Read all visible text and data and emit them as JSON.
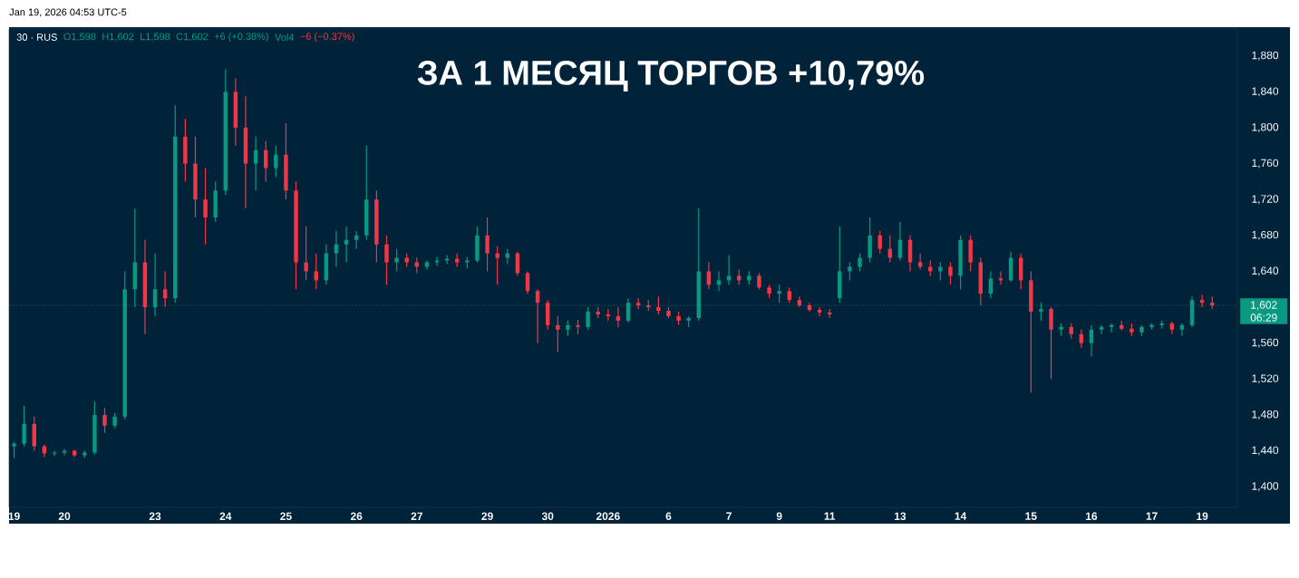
{
  "chart_data": {
    "type": "candlestick",
    "title": "ЗА 1 МЕСЯЦ ТОРГОВ +10,79%",
    "annotations": [
      "30 · RUS",
      "O1,598",
      "H1,602",
      "L1,598",
      "C1,602",
      "+6 (+0.38%)",
      "Vol4",
      "−6 (−0.37%)",
      "Jan 19, 2026 04:53 UTC-5",
      "06:29"
    ],
    "categories": [
      "19",
      null,
      null,
      null,
      null,
      "20",
      null,
      null,
      null,
      null,
      null,
      null,
      null,
      null,
      "23",
      null,
      null,
      null,
      null,
      null,
      null,
      "24",
      null,
      null,
      null,
      null,
      null,
      "25",
      null,
      null,
      null,
      null,
      null,
      null,
      "26",
      null,
      null,
      null,
      null,
      null,
      "27",
      null,
      null,
      null,
      null,
      null,
      null,
      "29",
      null,
      null,
      null,
      null,
      null,
      "30",
      null,
      null,
      null,
      null,
      null,
      "2026",
      null,
      null,
      null,
      null,
      null,
      "6",
      null,
      null,
      null,
      null,
      null,
      "7",
      null,
      null,
      null,
      null,
      "9",
      null,
      null,
      null,
      null,
      "11",
      null,
      null,
      null,
      null,
      null,
      null,
      "13",
      null,
      null,
      null,
      null,
      null,
      "14",
      null,
      null,
      null,
      null,
      null,
      null,
      "15",
      null,
      null,
      null,
      null,
      null,
      "16",
      null,
      null,
      null,
      null,
      null,
      "17",
      null,
      null,
      null,
      null,
      "19",
      null
    ],
    "ohlc": [
      [
        1445,
        1450,
        1432,
        1448
      ],
      [
        1448,
        1490,
        1445,
        1470
      ],
      [
        1470,
        1478,
        1440,
        1445
      ],
      [
        1445,
        1447,
        1433,
        1437
      ],
      [
        1437,
        1440,
        1434,
        1438
      ],
      [
        1438,
        1442,
        1435,
        1440
      ],
      [
        1440,
        1441,
        1433,
        1435
      ],
      [
        1435,
        1440,
        1432,
        1438
      ],
      [
        1438,
        1495,
        1436,
        1480
      ],
      [
        1480,
        1488,
        1460,
        1468
      ],
      [
        1468,
        1482,
        1465,
        1478
      ],
      [
        1478,
        1640,
        1475,
        1620
      ],
      [
        1620,
        1710,
        1600,
        1650
      ],
      [
        1650,
        1675,
        1570,
        1600
      ],
      [
        1600,
        1660,
        1590,
        1620
      ],
      [
        1620,
        1640,
        1600,
        1610
      ],
      [
        1610,
        1825,
        1605,
        1790
      ],
      [
        1790,
        1810,
        1740,
        1760
      ],
      [
        1760,
        1790,
        1700,
        1720
      ],
      [
        1720,
        1755,
        1670,
        1700
      ],
      [
        1700,
        1740,
        1695,
        1730
      ],
      [
        1730,
        1865,
        1725,
        1840
      ],
      [
        1840,
        1855,
        1780,
        1800
      ],
      [
        1800,
        1835,
        1710,
        1760
      ],
      [
        1760,
        1790,
        1730,
        1775
      ],
      [
        1775,
        1785,
        1740,
        1755
      ],
      [
        1755,
        1780,
        1745,
        1770
      ],
      [
        1770,
        1805,
        1720,
        1730
      ],
      [
        1730,
        1740,
        1620,
        1650
      ],
      [
        1650,
        1690,
        1630,
        1640
      ],
      [
        1640,
        1660,
        1620,
        1630
      ],
      [
        1630,
        1670,
        1625,
        1660
      ],
      [
        1660,
        1685,
        1645,
        1670
      ],
      [
        1670,
        1690,
        1650,
        1675
      ],
      [
        1675,
        1685,
        1665,
        1680
      ],
      [
        1680,
        1780,
        1675,
        1720
      ],
      [
        1720,
        1730,
        1650,
        1670
      ],
      [
        1670,
        1680,
        1625,
        1650
      ],
      [
        1650,
        1665,
        1640,
        1655
      ],
      [
        1655,
        1660,
        1645,
        1650
      ],
      [
        1650,
        1655,
        1638,
        1645
      ],
      [
        1645,
        1652,
        1642,
        1650
      ],
      [
        1650,
        1656,
        1646,
        1652
      ],
      [
        1652,
        1658,
        1648,
        1654
      ],
      [
        1654,
        1660,
        1645,
        1650
      ],
      [
        1650,
        1656,
        1643,
        1652
      ],
      [
        1652,
        1690,
        1650,
        1680
      ],
      [
        1680,
        1700,
        1640,
        1660
      ],
      [
        1660,
        1668,
        1625,
        1655
      ],
      [
        1655,
        1665,
        1648,
        1660
      ],
      [
        1660,
        1662,
        1635,
        1638
      ],
      [
        1638,
        1640,
        1615,
        1618
      ],
      [
        1618,
        1620,
        1560,
        1605
      ],
      [
        1605,
        1608,
        1575,
        1580
      ],
      [
        1580,
        1590,
        1550,
        1575
      ],
      [
        1575,
        1585,
        1568,
        1580
      ],
      [
        1580,
        1586,
        1570,
        1578
      ],
      [
        1578,
        1600,
        1575,
        1595
      ],
      [
        1595,
        1600,
        1588,
        1592
      ],
      [
        1592,
        1598,
        1585,
        1590
      ],
      [
        1590,
        1600,
        1578,
        1585
      ],
      [
        1585,
        1610,
        1583,
        1605
      ],
      [
        1605,
        1610,
        1598,
        1602
      ],
      [
        1602,
        1608,
        1596,
        1600
      ],
      [
        1600,
        1612,
        1592,
        1596
      ],
      [
        1596,
        1600,
        1588,
        1590
      ],
      [
        1590,
        1595,
        1580,
        1585
      ],
      [
        1585,
        1590,
        1578,
        1588
      ],
      [
        1588,
        1710,
        1585,
        1640
      ],
      [
        1640,
        1650,
        1620,
        1625
      ],
      [
        1625,
        1640,
        1618,
        1630
      ],
      [
        1630,
        1658,
        1625,
        1635
      ],
      [
        1635,
        1642,
        1625,
        1630
      ],
      [
        1630,
        1640,
        1625,
        1635
      ],
      [
        1635,
        1638,
        1620,
        1622
      ],
      [
        1622,
        1625,
        1610,
        1615
      ],
      [
        1615,
        1625,
        1605,
        1618
      ],
      [
        1618,
        1622,
        1605,
        1608
      ],
      [
        1608,
        1612,
        1600,
        1602
      ],
      [
        1602,
        1605,
        1595,
        1597
      ],
      [
        1597,
        1600,
        1590,
        1594
      ],
      [
        1594,
        1598,
        1588,
        1592
      ],
      [
        1610,
        1690,
        1605,
        1640
      ],
      [
        1640,
        1650,
        1630,
        1645
      ],
      [
        1645,
        1660,
        1640,
        1655
      ],
      [
        1655,
        1700,
        1650,
        1680
      ],
      [
        1680,
        1685,
        1660,
        1665
      ],
      [
        1665,
        1680,
        1650,
        1655
      ],
      [
        1655,
        1695,
        1652,
        1675
      ],
      [
        1675,
        1680,
        1640,
        1650
      ],
      [
        1650,
        1660,
        1642,
        1645
      ],
      [
        1645,
        1652,
        1635,
        1640
      ],
      [
        1640,
        1650,
        1630,
        1645
      ],
      [
        1645,
        1650,
        1625,
        1635
      ],
      [
        1635,
        1680,
        1620,
        1675
      ],
      [
        1675,
        1680,
        1640,
        1650
      ],
      [
        1650,
        1655,
        1602,
        1615
      ],
      [
        1615,
        1640,
        1610,
        1632
      ],
      [
        1632,
        1640,
        1625,
        1630
      ],
      [
        1630,
        1662,
        1628,
        1655
      ],
      [
        1655,
        1660,
        1620,
        1630
      ],
      [
        1630,
        1640,
        1505,
        1595
      ],
      [
        1595,
        1605,
        1585,
        1598
      ],
      [
        1598,
        1600,
        1520,
        1575
      ],
      [
        1575,
        1582,
        1568,
        1578
      ],
      [
        1578,
        1582,
        1565,
        1570
      ],
      [
        1570,
        1575,
        1555,
        1560
      ],
      [
        1560,
        1580,
        1545,
        1575
      ],
      [
        1575,
        1580,
        1570,
        1578
      ],
      [
        1578,
        1582,
        1572,
        1580
      ],
      [
        1580,
        1585,
        1574,
        1576
      ],
      [
        1576,
        1582,
        1568,
        1572
      ],
      [
        1572,
        1580,
        1568,
        1578
      ],
      [
        1578,
        1582,
        1575,
        1580
      ],
      [
        1580,
        1585,
        1576,
        1582
      ],
      [
        1582,
        1584,
        1570,
        1575
      ],
      [
        1575,
        1582,
        1568,
        1580
      ],
      [
        1580,
        1612,
        1578,
        1608
      ],
      [
        1608,
        1614,
        1600,
        1605
      ],
      [
        1605,
        1612,
        1598,
        1602
      ]
    ],
    "ylim": [
      1377,
      1910
    ],
    "yticks": [
      {
        "value": 1400,
        "label": "1,400"
      },
      {
        "value": 1440,
        "label": "1,440"
      },
      {
        "value": 1480,
        "label": "1,480"
      },
      {
        "value": 1520,
        "label": "1,520"
      },
      {
        "value": 1560,
        "label": "1,560"
      },
      {
        "value": 1640,
        "label": "1,640"
      },
      {
        "value": 1680,
        "label": "1,680"
      },
      {
        "value": 1720,
        "label": "1,720"
      },
      {
        "value": 1760,
        "label": "1,760"
      },
      {
        "value": 1800,
        "label": "1,800"
      },
      {
        "value": 1840,
        "label": "1,840"
      },
      {
        "value": 1880,
        "label": "1,880"
      }
    ],
    "ref_lines": [
      {
        "axis": "y",
        "value": 1602,
        "label": "1,602",
        "color": "#089981",
        "line_style": "dotted"
      }
    ]
  }
}
